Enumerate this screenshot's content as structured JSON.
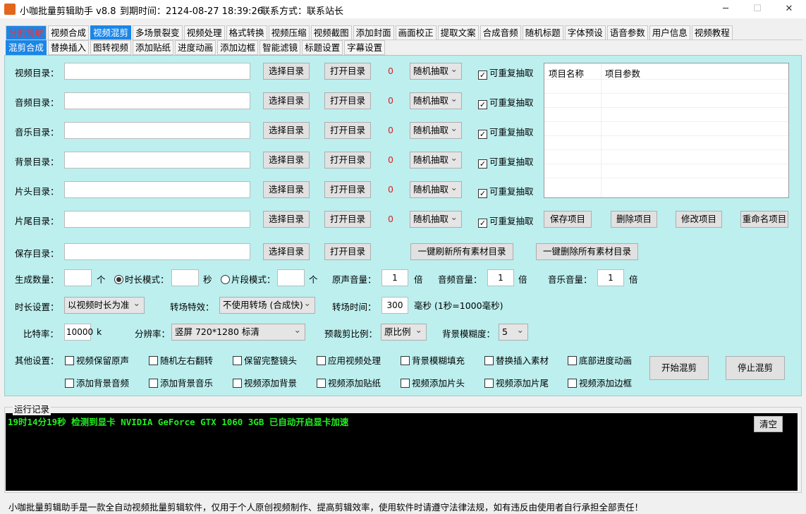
{
  "titlebar": {
    "app_title": "小咖批量剪辑助手 v8.8",
    "expiry": "到期时间：2124-08-27 18:39:26",
    "contact": "联系方式：联系站长",
    "minimize": "─",
    "maximize": "☐",
    "close": "✕"
  },
  "tabs_main": [
    "分割提取",
    "视频合成",
    "视频混剪",
    "多场景裂变",
    "视频处理",
    "格式转换",
    "视频压缩",
    "视频截图",
    "添加封面",
    "画面校正",
    "提取文案",
    "合成音频",
    "随机标题",
    "字体预设",
    "语音参数",
    "用户信息",
    "视频教程"
  ],
  "tabs_sub": [
    "混剪合成",
    "替换插入",
    "图转视频",
    "添加贴纸",
    "进度动画",
    "添加边框",
    "智能滤镜",
    "标题设置",
    "字幕设置"
  ],
  "dir_rows": [
    {
      "label": "视频目录：",
      "value": "",
      "select_btn": "选择目录",
      "open_btn": "打开目录",
      "count": "0",
      "mode": "随机抽取",
      "repeat": "可重复抽取",
      "repeat_checked": true
    },
    {
      "label": "音频目录：",
      "value": "",
      "select_btn": "选择目录",
      "open_btn": "打开目录",
      "count": "0",
      "mode": "随机抽取",
      "repeat": "可重复抽取",
      "repeat_checked": true
    },
    {
      "label": "音乐目录：",
      "value": "",
      "select_btn": "选择目录",
      "open_btn": "打开目录",
      "count": "0",
      "mode": "随机抽取",
      "repeat": "可重复抽取",
      "repeat_checked": true
    },
    {
      "label": "背景目录：",
      "value": "",
      "select_btn": "选择目录",
      "open_btn": "打开目录",
      "count": "0",
      "mode": "随机抽取",
      "repeat": "可重复抽取",
      "repeat_checked": true
    },
    {
      "label": "片头目录：",
      "value": "",
      "select_btn": "选择目录",
      "open_btn": "打开目录",
      "count": "0",
      "mode": "随机抽取",
      "repeat": "可重复抽取",
      "repeat_checked": true
    },
    {
      "label": "片尾目录：",
      "value": "",
      "select_btn": "选择目录",
      "open_btn": "打开目录",
      "count": "0",
      "mode": "随机抽取",
      "repeat": "可重复抽取",
      "repeat_checked": true
    }
  ],
  "save_row": {
    "label": "保存目录：",
    "value": "",
    "select_btn": "选择目录",
    "open_btn": "打开目录",
    "refresh_all": "一键刷新所有素材目录",
    "delete_all": "一键删除所有素材目录"
  },
  "project_list": {
    "col_name": "项目名称",
    "col_params": "项目参数",
    "save": "保存项目",
    "delete": "删除项目",
    "modify": "修改项目",
    "rename": "重命名项目"
  },
  "gen": {
    "count_label": "生成数量：",
    "count_value": "",
    "count_unit": "个",
    "duration_mode": "时长模式：",
    "duration_value": "",
    "duration_unit": "秒",
    "segment_mode": "片段模式：",
    "segment_value": "",
    "segment_unit": "个",
    "orig_vol_label": "原声音量：",
    "orig_vol": "1",
    "audio_vol_label": "音频音量：",
    "audio_vol": "1",
    "music_vol_label": "音乐音量：",
    "music_vol": "1",
    "times": "倍",
    "duration_mode_selected": true
  },
  "dur": {
    "label": "时长设置：",
    "value": "以视频时长为准",
    "trans_label": "转场特效：",
    "trans_value": "不使用转场 (合成快)",
    "trans_time_label": "转场时间：",
    "trans_time": "300",
    "trans_unit": "毫秒 (1秒=1000毫秒)"
  },
  "bitrate": {
    "label": "比特率：",
    "value": "10000",
    "unit": "k",
    "res_label": "分辨率：",
    "res_value": "竖屏  720*1280    标清",
    "crop_label": "预裁剪比例：",
    "crop_value": "原比例",
    "blur_label": "背景模糊度：",
    "blur_value": "5"
  },
  "other": {
    "label": "其他设置：",
    "options": [
      "视频保留原声",
      "随机左右翻转",
      "保留完整镜头",
      "应用视频处理",
      "背景模糊填充",
      "替换插入素材",
      "底部进度动画",
      "添加背景音频",
      "添加背景音乐",
      "视频添加背景",
      "视频添加贴纸",
      "视频添加片头",
      "视频添加片尾",
      "视频添加边框"
    ],
    "start": "开始混剪",
    "stop": "停止混剪"
  },
  "log": {
    "title": "运行记录",
    "lines": [
      "19时14分19秒  检测到显卡  NVIDIA GeForce GTX  1060  3GB  已自动开启显卡加速"
    ],
    "clear": "清空"
  },
  "footer": "小咖批量剪辑助手是一款全自动视频批量剪辑软件，仅用于个人原创视频制作、提高剪辑效率，使用软件时请遵守法律法规，如有违反由使用者自行承担全部责任！",
  "colors": {
    "panel": "#bdefef",
    "active_tab": "#1a86e8",
    "log_text": "#22ee22",
    "count_red": "#e02020"
  }
}
